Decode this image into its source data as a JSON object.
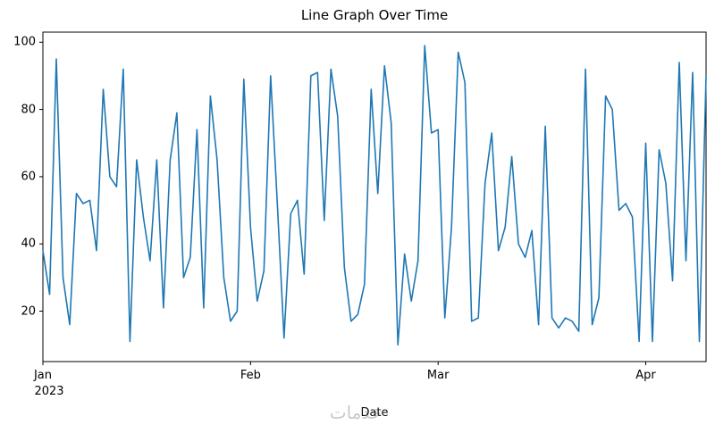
{
  "watermark": "خدمات",
  "chart_data": {
    "type": "line",
    "title": "Line Graph Over Time",
    "xlabel": "Date",
    "ylabel": "",
    "x_start": "2023-01-01",
    "x_unit": "day",
    "x_year_label": "2023",
    "x_tick_labels": [
      "Jan",
      "Feb",
      "Mar",
      "Apr"
    ],
    "x_tick_days": [
      0,
      31,
      59,
      90
    ],
    "y_ticks": [
      20,
      40,
      60,
      80,
      100
    ],
    "ylim": [
      5,
      103
    ],
    "grid": false,
    "legend": "none",
    "line_color": "#1f77b4",
    "values": [
      38,
      25,
      95,
      30,
      16,
      55,
      52,
      53,
      38,
      86,
      60,
      57,
      92,
      11,
      65,
      48,
      35,
      65,
      21,
      65,
      79,
      30,
      36,
      74,
      21,
      84,
      65,
      30,
      17,
      20,
      89,
      45,
      23,
      32,
      90,
      52,
      12,
      49,
      53,
      31,
      90,
      91,
      47,
      92,
      78,
      33,
      17,
      19,
      28,
      86,
      55,
      93,
      76,
      10,
      37,
      23,
      35,
      99,
      73,
      74,
      18,
      45,
      97,
      88,
      17,
      18,
      58,
      73,
      38,
      45,
      66,
      40,
      36,
      44,
      16,
      75,
      18,
      15,
      18,
      17,
      14,
      92,
      16,
      24,
      84,
      80,
      50,
      52,
      48,
      11,
      70,
      11,
      68,
      58,
      29,
      94,
      35,
      91,
      11,
      90
    ]
  }
}
